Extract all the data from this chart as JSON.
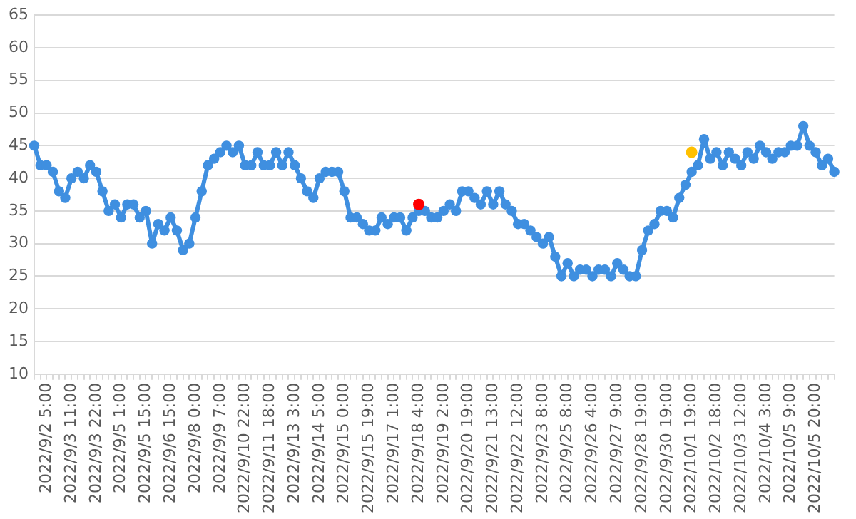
{
  "chart_data": {
    "type": "line",
    "categories": [
      null,
      null,
      "2022/9/2 5:00",
      null,
      null,
      null,
      "2022/9/3 11:00",
      null,
      null,
      null,
      "2022/9/3 22:00",
      null,
      null,
      null,
      "2022/9/5 1:00",
      null,
      null,
      null,
      "2022/9/5 15:00",
      null,
      null,
      null,
      "2022/9/6 15:00",
      null,
      null,
      null,
      "2022/9/8 0:00",
      null,
      null,
      null,
      "2022/9/9 7:00",
      null,
      null,
      null,
      "2022/9/10 22:00",
      null,
      null,
      null,
      "2022/9/11 18:00",
      null,
      null,
      null,
      "2022/9/13 3:00",
      null,
      null,
      null,
      "2022/9/14 5:00",
      null,
      null,
      null,
      "2022/9/15 0:00",
      null,
      null,
      null,
      "2022/9/15 19:00",
      null,
      null,
      null,
      "2022/9/17 1:00",
      null,
      null,
      null,
      "2022/9/18 4:00",
      null,
      null,
      null,
      "2022/9/19 2:00",
      null,
      null,
      null,
      "2022/9/20 19:00",
      null,
      null,
      null,
      "2022/9/21 13:00",
      null,
      null,
      null,
      "2022/9/22 12:00",
      null,
      null,
      null,
      "2022/9/23 8:00",
      null,
      null,
      null,
      "2022/9/25 8:00",
      null,
      null,
      null,
      "2022/9/26 4:00",
      null,
      null,
      null,
      "2022/9/27 9:00",
      null,
      null,
      null,
      "2022/9/28 19:00",
      null,
      null,
      null,
      "2022/9/30 19:00",
      null,
      null,
      null,
      "2022/10/1 19:00",
      null,
      null,
      null,
      "2022/10/2 18:00",
      null,
      null,
      null,
      "2022/10/3 12:00",
      null,
      null,
      null,
      "2022/10/4 3:00",
      null,
      null,
      null,
      "2022/10/5 9:00",
      null,
      null,
      null,
      "2022/10/5 20:00",
      null,
      null,
      null
    ],
    "series": [
      {
        "color": "#3f8fe0",
        "values": [
          45,
          42,
          42,
          41,
          38,
          37,
          40,
          41,
          40,
          42,
          41,
          38,
          35,
          36,
          34,
          36,
          36,
          34,
          35,
          30,
          33,
          32,
          34,
          32,
          29,
          30,
          34,
          38,
          42,
          43,
          44,
          45,
          44,
          45,
          42,
          42,
          44,
          42,
          42,
          44,
          42,
          44,
          42,
          40,
          38,
          37,
          40,
          41,
          41,
          41,
          38,
          34,
          34,
          33,
          32,
          32,
          34,
          33,
          34,
          34,
          32,
          34,
          35,
          35,
          34,
          34,
          35,
          36,
          35,
          38,
          38,
          37,
          36,
          38,
          36,
          38,
          36,
          35,
          33,
          33,
          32,
          31,
          30,
          31,
          28,
          25,
          27,
          25,
          26,
          26,
          25,
          26,
          26,
          25,
          27,
          26,
          25,
          25,
          29,
          32,
          33,
          35,
          35,
          34,
          37,
          39,
          41,
          42,
          46,
          43,
          44,
          42,
          44,
          43,
          42,
          44,
          43,
          45,
          44,
          43,
          44,
          44,
          45,
          45,
          48,
          45,
          44,
          42,
          43,
          41
        ]
      },
      {
        "type": "scatter",
        "color": "#ff0000",
        "x": [
          "2022/9/18 4:00"
        ],
        "values": [
          36
        ]
      },
      {
        "type": "scatter",
        "color": "#ffc000",
        "x": [
          "2022/10/1 19:00"
        ],
        "values": [
          44
        ]
      }
    ],
    "ylim": [
      10,
      65
    ],
    "yticks": [
      10,
      15,
      20,
      25,
      30,
      35,
      40,
      45,
      50,
      55,
      60,
      65
    ],
    "grid": "y",
    "legend": false,
    "marker": "circle",
    "line_style": "solid"
  }
}
